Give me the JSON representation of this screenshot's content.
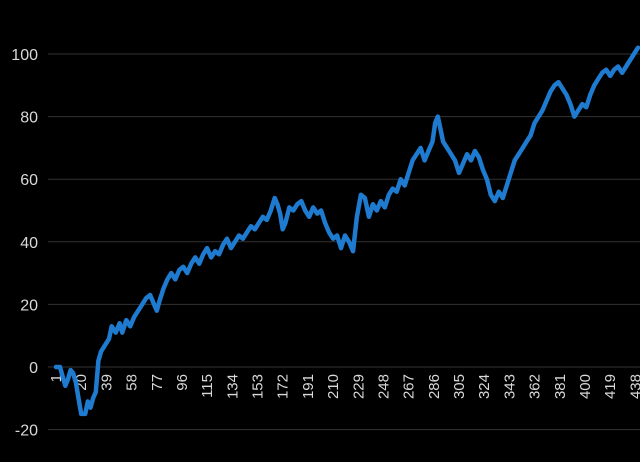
{
  "chart_data": {
    "type": "line",
    "title": "",
    "xlabel": "",
    "ylabel": "",
    "ylim": [
      -20,
      105
    ],
    "grid": "horizontal",
    "legend": "none",
    "y_ticks": [
      100,
      80,
      60,
      40,
      20,
      0,
      -20
    ],
    "x_ticks": [
      1,
      20,
      39,
      58,
      77,
      96,
      115,
      134,
      153,
      172,
      191,
      210,
      229,
      248,
      267,
      286,
      305,
      324,
      343,
      362,
      381,
      400,
      419,
      438
    ],
    "colors": {
      "series": "#1f7bd0",
      "grid": "#333333",
      "text": "#d9d9d9",
      "background": "#000000"
    },
    "series": [
      {
        "points": [
          [
            1,
            0
          ],
          [
            4,
            0
          ],
          [
            6,
            -3
          ],
          [
            8,
            -6
          ],
          [
            10,
            -4
          ],
          [
            12,
            -1
          ],
          [
            14,
            -2
          ],
          [
            16,
            -5
          ],
          [
            18,
            -10
          ],
          [
            20,
            -15
          ],
          [
            23,
            -15
          ],
          [
            25,
            -11
          ],
          [
            27,
            -13
          ],
          [
            29,
            -10
          ],
          [
            31,
            -8
          ],
          [
            33,
            2
          ],
          [
            35,
            5
          ],
          [
            38,
            7
          ],
          [
            41,
            9
          ],
          [
            43,
            13
          ],
          [
            46,
            11
          ],
          [
            49,
            14
          ],
          [
            51,
            11
          ],
          [
            54,
            15
          ],
          [
            57,
            13
          ],
          [
            60,
            16
          ],
          [
            63,
            18
          ],
          [
            66,
            20
          ],
          [
            69,
            22
          ],
          [
            72,
            23
          ],
          [
            75,
            20
          ],
          [
            77,
            18
          ],
          [
            79,
            21
          ],
          [
            82,
            25
          ],
          [
            85,
            28
          ],
          [
            88,
            30
          ],
          [
            91,
            28
          ],
          [
            94,
            31
          ],
          [
            97,
            32
          ],
          [
            100,
            30
          ],
          [
            103,
            33
          ],
          [
            106,
            35
          ],
          [
            109,
            33
          ],
          [
            112,
            36
          ],
          [
            115,
            38
          ],
          [
            118,
            35
          ],
          [
            121,
            37
          ],
          [
            124,
            36
          ],
          [
            127,
            39
          ],
          [
            130,
            41
          ],
          [
            133,
            38
          ],
          [
            136,
            40
          ],
          [
            139,
            42
          ],
          [
            142,
            41
          ],
          [
            145,
            43
          ],
          [
            148,
            45
          ],
          [
            151,
            44
          ],
          [
            154,
            46
          ],
          [
            157,
            48
          ],
          [
            160,
            47
          ],
          [
            163,
            50
          ],
          [
            166,
            54
          ],
          [
            168,
            52
          ],
          [
            170,
            49
          ],
          [
            172,
            44
          ],
          [
            174,
            46
          ],
          [
            177,
            51
          ],
          [
            180,
            50
          ],
          [
            183,
            52
          ],
          [
            186,
            53
          ],
          [
            189,
            50
          ],
          [
            192,
            48
          ],
          [
            195,
            51
          ],
          [
            198,
            49
          ],
          [
            201,
            50
          ],
          [
            204,
            46
          ],
          [
            207,
            43
          ],
          [
            210,
            41
          ],
          [
            213,
            42
          ],
          [
            216,
            38
          ],
          [
            219,
            42
          ],
          [
            222,
            40
          ],
          [
            225,
            37
          ],
          [
            228,
            48
          ],
          [
            231,
            55
          ],
          [
            234,
            54
          ],
          [
            237,
            48
          ],
          [
            240,
            52
          ],
          [
            243,
            50
          ],
          [
            246,
            53
          ],
          [
            249,
            51
          ],
          [
            252,
            55
          ],
          [
            255,
            57
          ],
          [
            258,
            56
          ],
          [
            261,
            60
          ],
          [
            264,
            58
          ],
          [
            267,
            62
          ],
          [
            270,
            66
          ],
          [
            273,
            68
          ],
          [
            276,
            70
          ],
          [
            279,
            66
          ],
          [
            282,
            69
          ],
          [
            285,
            72
          ],
          [
            287,
            78
          ],
          [
            289,
            80
          ],
          [
            291,
            76
          ],
          [
            293,
            72
          ],
          [
            296,
            70
          ],
          [
            299,
            68
          ],
          [
            302,
            66
          ],
          [
            305,
            62
          ],
          [
            308,
            65
          ],
          [
            311,
            68
          ],
          [
            314,
            66
          ],
          [
            317,
            69
          ],
          [
            320,
            67
          ],
          [
            323,
            63
          ],
          [
            326,
            60
          ],
          [
            329,
            55
          ],
          [
            332,
            53
          ],
          [
            335,
            56
          ],
          [
            338,
            54
          ],
          [
            341,
            58
          ],
          [
            344,
            62
          ],
          [
            347,
            66
          ],
          [
            350,
            68
          ],
          [
            353,
            70
          ],
          [
            356,
            72
          ],
          [
            359,
            74
          ],
          [
            362,
            78
          ],
          [
            365,
            80
          ],
          [
            368,
            82
          ],
          [
            371,
            85
          ],
          [
            374,
            88
          ],
          [
            377,
            90
          ],
          [
            380,
            91
          ],
          [
            383,
            89
          ],
          [
            386,
            87
          ],
          [
            389,
            84
          ],
          [
            392,
            80
          ],
          [
            395,
            82
          ],
          [
            398,
            84
          ],
          [
            401,
            83
          ],
          [
            404,
            87
          ],
          [
            407,
            90
          ],
          [
            410,
            92
          ],
          [
            413,
            94
          ],
          [
            416,
            95
          ],
          [
            419,
            93
          ],
          [
            422,
            95
          ],
          [
            425,
            96
          ],
          [
            428,
            94
          ],
          [
            431,
            96
          ],
          [
            434,
            98
          ],
          [
            437,
            100
          ],
          [
            440,
            102
          ]
        ]
      }
    ]
  }
}
